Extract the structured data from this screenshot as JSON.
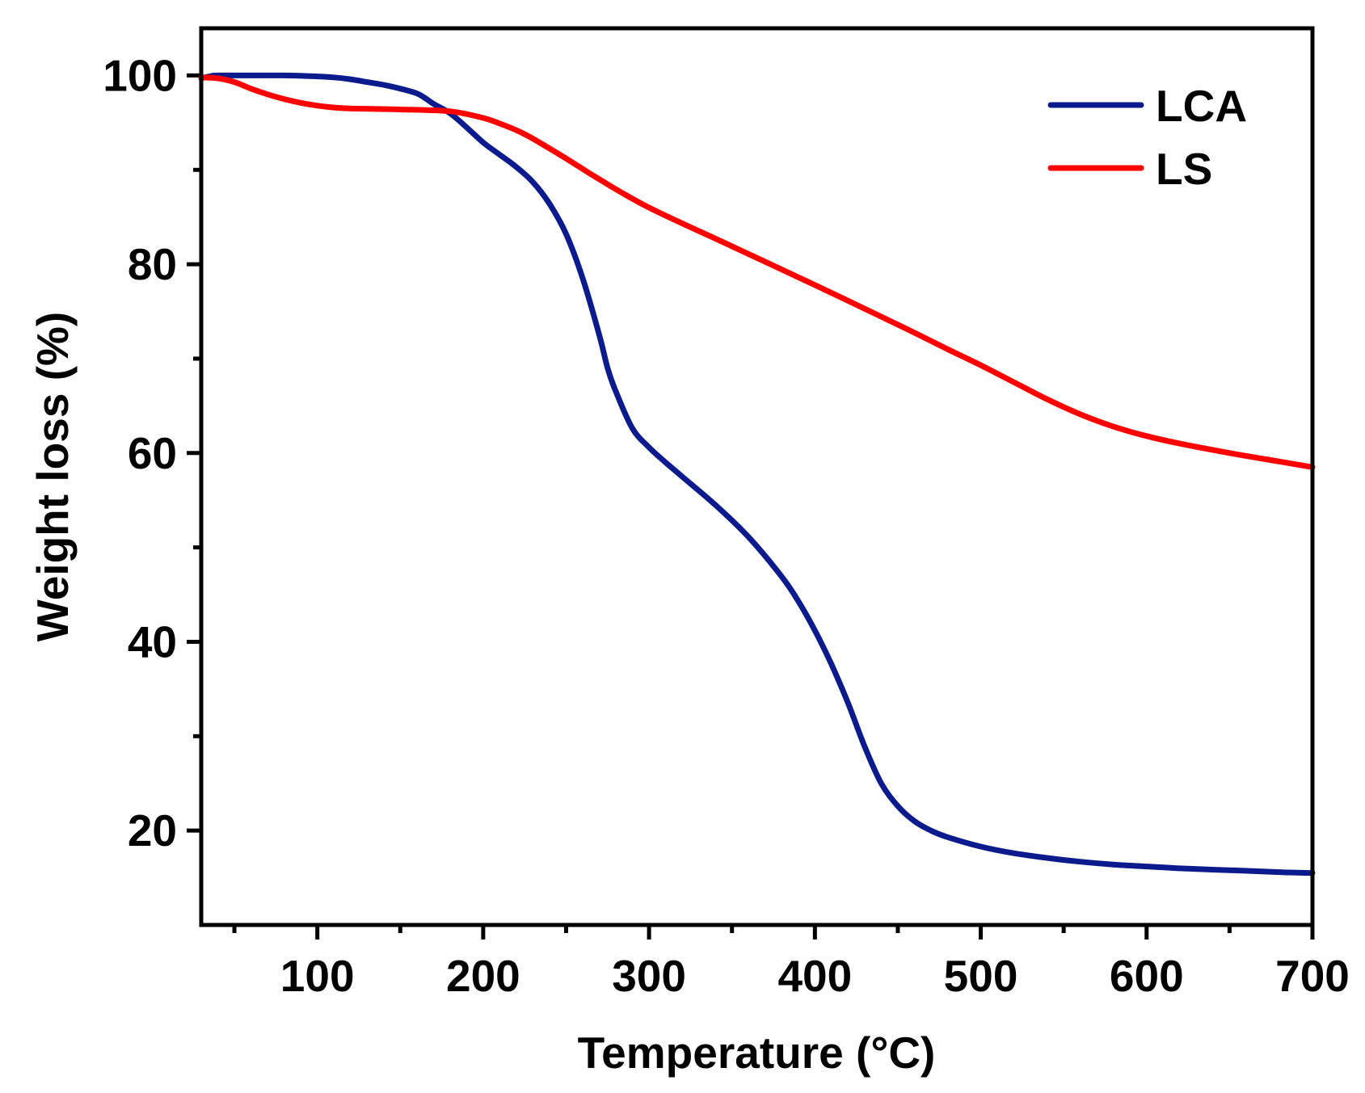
{
  "chart_data": {
    "type": "line",
    "title": "",
    "xlabel": "Temperature (°C)",
    "ylabel": "Weight loss (%)",
    "xlim": [
      30,
      700
    ],
    "ylim": [
      10,
      105
    ],
    "x_ticks": [
      100,
      200,
      300,
      400,
      500,
      600,
      700
    ],
    "y_ticks": [
      20,
      40,
      60,
      80,
      100
    ],
    "x_tick_labels": [
      "100",
      "200",
      "300",
      "400",
      "500",
      "600",
      "700"
    ],
    "y_tick_labels": [
      "20",
      "40",
      "60",
      "80",
      "100"
    ],
    "grid": false,
    "legend_position": "top-right",
    "series": [
      {
        "name": "LCA",
        "color": "#0b1a8c",
        "x": [
          30,
          35,
          40,
          60,
          80,
          100,
          110,
          120,
          130,
          140,
          150,
          160,
          165,
          170,
          180,
          190,
          200,
          210,
          220,
          230,
          240,
          250,
          260,
          270,
          275,
          280,
          290,
          300,
          310,
          320,
          340,
          360,
          380,
          390,
          400,
          410,
          420,
          430,
          440,
          450,
          460,
          470,
          480,
          500,
          520,
          540,
          560,
          580,
          600,
          620,
          650,
          680,
          700
        ],
        "y": [
          99.7,
          99.9,
          100,
          100,
          100,
          99.9,
          99.8,
          99.6,
          99.3,
          99.0,
          98.6,
          98.1,
          97.6,
          97.0,
          96.0,
          94.5,
          92.9,
          91.6,
          90.3,
          88.7,
          86.4,
          83.2,
          78.5,
          72.5,
          69.0,
          66.5,
          62.6,
          60.6,
          59.0,
          57.5,
          54.5,
          51.1,
          46.9,
          44.3,
          41.2,
          37.6,
          33.5,
          28.9,
          25.0,
          22.6,
          21.0,
          20.0,
          19.3,
          18.3,
          17.6,
          17.1,
          16.7,
          16.4,
          16.2,
          16.0,
          15.8,
          15.6,
          15.5
        ]
      },
      {
        "name": "LS",
        "color": "#ff0000",
        "x": [
          30,
          40,
          50,
          60,
          70,
          80,
          90,
          100,
          110,
          120,
          150,
          180,
          200,
          210,
          220,
          230,
          250,
          270,
          300,
          350,
          400,
          450,
          480,
          500,
          520,
          540,
          560,
          580,
          600,
          620,
          650,
          680,
          700
        ],
        "y": [
          99.8,
          99.7,
          99.3,
          98.6,
          98.0,
          97.5,
          97.1,
          96.8,
          96.6,
          96.5,
          96.4,
          96.2,
          95.5,
          94.9,
          94.2,
          93.3,
          91.2,
          89.0,
          86.0,
          81.9,
          77.8,
          73.6,
          71.0,
          69.3,
          67.5,
          65.7,
          64.1,
          62.8,
          61.8,
          61.0,
          60.0,
          59.1,
          58.5
        ]
      }
    ]
  }
}
